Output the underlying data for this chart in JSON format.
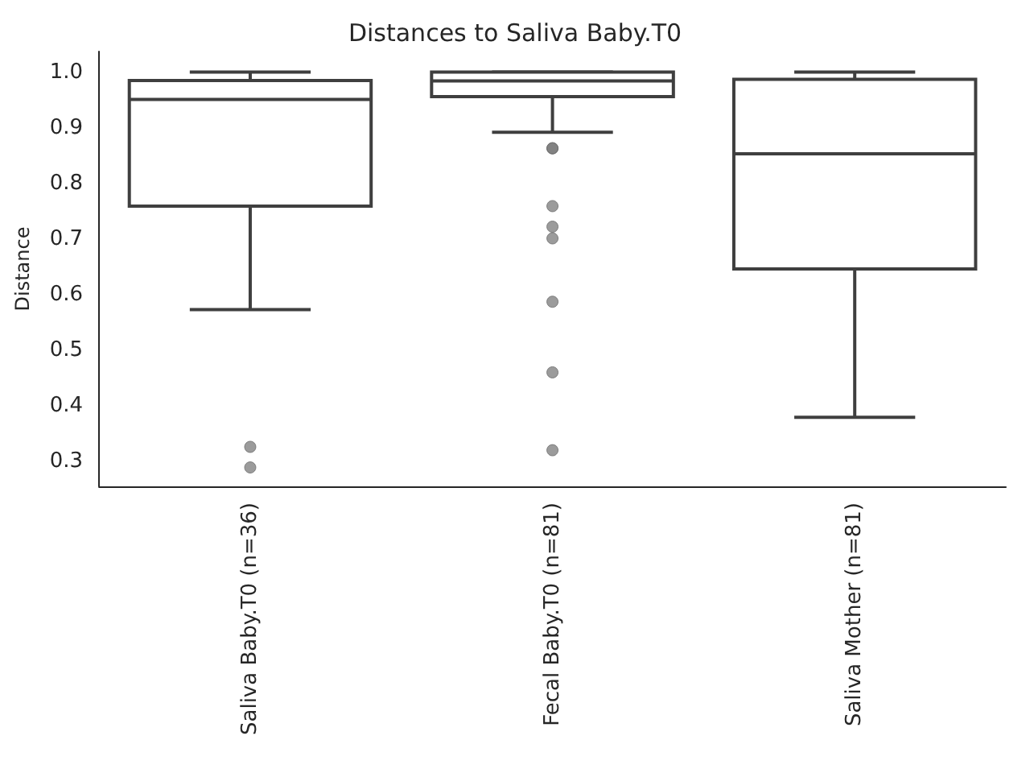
{
  "chart_data": {
    "type": "box",
    "title": "Distances to Saliva Baby.T0",
    "ylabel": "Distance",
    "categories": [
      "Saliva Baby.T0 (n=36)",
      "Fecal Baby.T0 (n=81)",
      "Saliva Mother (n=81)"
    ],
    "color": "#3f3f3f",
    "boxes": [
      {
        "low": 0.573,
        "q1": 0.759,
        "median": 0.951,
        "q3": 0.985,
        "high": 1.0,
        "outliers": [
          0.326,
          0.289
        ]
      },
      {
        "low": 0.892,
        "q1": 0.956,
        "median": 0.984,
        "q3": 1.0,
        "high": 1.0,
        "outliers": [
          0.863,
          0.863,
          0.759,
          0.722,
          0.701,
          0.587,
          0.46,
          0.32
        ]
      },
      {
        "low": 0.379,
        "q1": 0.646,
        "median": 0.853,
        "q3": 0.987,
        "high": 1.0
      }
    ],
    "ylim": [
      0.255,
      1.037
    ],
    "yticks": [
      0.3,
      0.4,
      0.5,
      0.6,
      0.7,
      0.8,
      0.9,
      {
        "value": 1.0,
        "label": "1.0"
      }
    ],
    "grid": false
  }
}
